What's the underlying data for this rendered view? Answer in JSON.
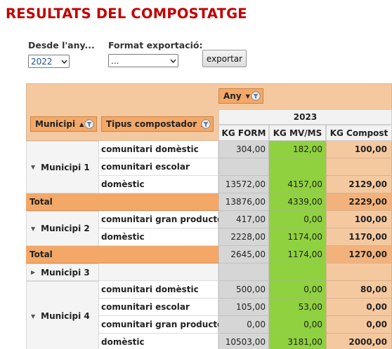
{
  "page": {
    "title": "RESULTATS DEL COMPOSTATGE"
  },
  "filters": {
    "year_label": "Desde l'any...",
    "year_value": "2022",
    "format_label": "Format exportació:",
    "format_value": "...",
    "export_label": "exportar"
  },
  "pivot": {
    "column_field": "Any",
    "row_fields": [
      "Municipi",
      "Tipus compostador"
    ],
    "year": "2023",
    "columns": [
      "KG FORM",
      "KG MV/MS",
      "KG Compost"
    ],
    "total_label": "Total",
    "groups": [
      {
        "name": "Municipi 1",
        "expanded": true,
        "rows": [
          {
            "tipus": "comunitari domèstic",
            "form": "304,00",
            "mv": "182,00",
            "compost": "100,00"
          },
          {
            "tipus": "comunitari escolar",
            "form": "",
            "mv": "",
            "compost": ""
          },
          {
            "tipus": "domèstic",
            "form": "13572,00",
            "mv": "4157,00",
            "compost": "2129,00"
          }
        ],
        "total": {
          "form": "13876,00",
          "mv": "4339,00",
          "compost": "2229,00"
        }
      },
      {
        "name": "Municipi 2",
        "expanded": true,
        "rows": [
          {
            "tipus": "comunitari gran productor",
            "form": "417,00",
            "mv": "0,00",
            "compost": "100,00"
          },
          {
            "tipus": "domèstic",
            "form": "2228,00",
            "mv": "1174,00",
            "compost": "1170,00"
          }
        ],
        "total": {
          "form": "2645,00",
          "mv": "1174,00",
          "compost": "1270,00"
        }
      },
      {
        "name": "Municipi 3",
        "expanded": false,
        "rows": []
      },
      {
        "name": "Municipi 4",
        "expanded": true,
        "rows": [
          {
            "tipus": "comunitari domèstic",
            "form": "500,00",
            "mv": "0,00",
            "compost": "80,00"
          },
          {
            "tipus": "comunitari escolar",
            "form": "105,00",
            "mv": "53,00",
            "compost": "0,00"
          },
          {
            "tipus": "comunitari gran productor",
            "form": "0,00",
            "mv": "0,00",
            "compost": "0,00"
          },
          {
            "tipus": "domèstic",
            "form": "10503,00",
            "mv": "3181,00",
            "compost": "2000,00"
          }
        ]
      }
    ]
  },
  "colors": {
    "title": "#c00000",
    "header_bg": "#f5c9a0",
    "field_button": "#f3a868",
    "mv_column": "#8fd13f",
    "form_column": "#d6d6d6"
  }
}
